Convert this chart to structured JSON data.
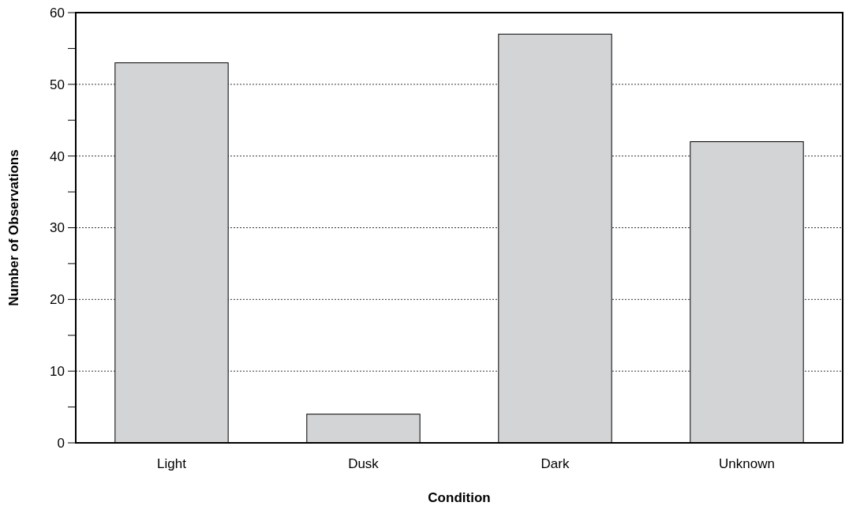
{
  "chart_data": {
    "type": "bar",
    "xlabel": "Condition",
    "ylabel": "Number of Observations",
    "categories": [
      "Light",
      "Dusk",
      "Dark",
      "Unknown"
    ],
    "values": [
      53,
      4,
      57,
      42
    ],
    "color": "#d3d4d6",
    "ylim": [
      0,
      60
    ],
    "yticks": [
      0,
      {
        "value": 5,
        "label": null
      },
      10,
      {
        "value": 15,
        "label": null
      },
      20,
      {
        "value": 25,
        "label": null
      },
      30,
      {
        "value": 35,
        "label": null
      },
      40,
      {
        "value": 45,
        "label": null
      },
      50,
      {
        "value": 55,
        "label": null
      },
      60
    ],
    "grid": "y",
    "line_style": "dotted"
  }
}
